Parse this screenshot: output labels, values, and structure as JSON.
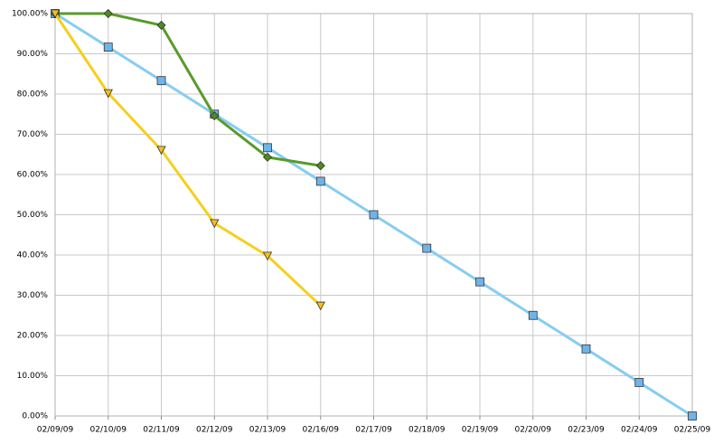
{
  "chart_data": {
    "type": "line",
    "categories": [
      "02/09/09",
      "02/10/09",
      "02/11/09",
      "02/12/09",
      "02/13/09",
      "02/16/09",
      "02/17/09",
      "02/18/09",
      "02/19/09",
      "02/20/09",
      "02/23/09",
      "02/24/09",
      "02/25/09"
    ],
    "series": [
      {
        "color": "#87cdf0",
        "marker": "square",
        "marker_color": "#6fb4e8",
        "values": [
          100,
          91.67,
          83.33,
          75,
          66.67,
          58.33,
          50,
          41.67,
          33.33,
          25,
          16.67,
          8.33,
          0
        ]
      },
      {
        "color": "#5a9a2a",
        "marker": "diamond",
        "marker_color": "#4e8a22",
        "values": [
          100,
          100,
          97.1,
          74.6,
          64.3,
          62.2,
          null,
          null,
          null,
          null,
          null,
          null,
          null
        ]
      },
      {
        "color": "#f5cf1f",
        "marker": "triangle-down",
        "marker_color": "#f0c020",
        "values": [
          100,
          80.2,
          66.1,
          47.9,
          39.8,
          27.4,
          null,
          null,
          null,
          null,
          null,
          null,
          null
        ]
      }
    ],
    "ylim": [
      0,
      100
    ],
    "yticks": [
      {
        "value": 0,
        "label": "0.00%"
      },
      {
        "value": 10,
        "label": "10.00%"
      },
      {
        "value": 20,
        "label": "20.00%"
      },
      {
        "value": 30,
        "label": "30.00%"
      },
      {
        "value": 40,
        "label": "40.00%"
      },
      {
        "value": 50,
        "label": "50.00%"
      },
      {
        "value": 60,
        "label": "60.00%"
      },
      {
        "value": 70,
        "label": "70.00%"
      },
      {
        "value": 80,
        "label": "80.00%"
      },
      {
        "value": 90,
        "label": "90.00%"
      },
      {
        "value": 100,
        "label": "100.00%"
      }
    ],
    "grid": true
  }
}
